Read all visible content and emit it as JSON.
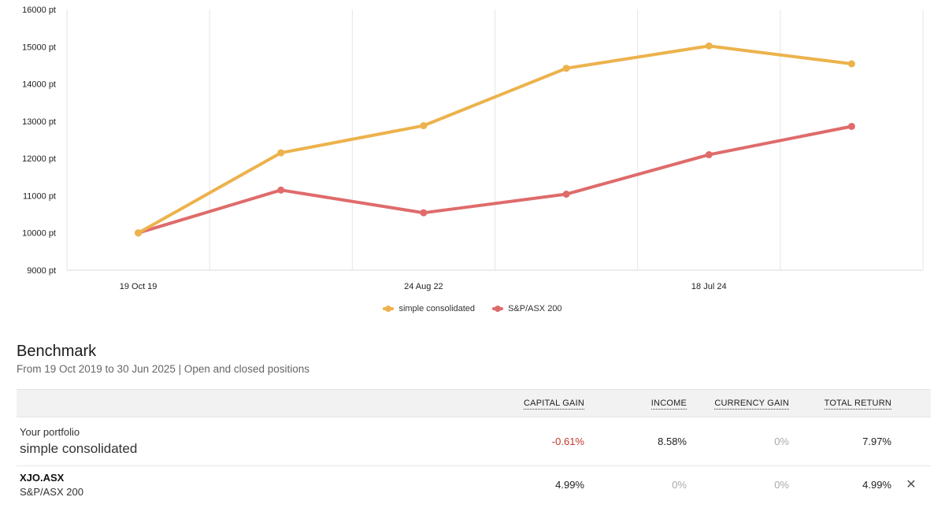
{
  "chart_data": {
    "type": "line",
    "x": [
      "19 Oct 19",
      "",
      "24 Aug 22",
      "",
      "18 Jul 24",
      ""
    ],
    "x_tick_labels": [
      "19 Oct 19",
      "24 Aug 22",
      "18 Jul 24"
    ],
    "ylim": [
      9000,
      16000
    ],
    "y_ticks": [
      9000,
      10000,
      11000,
      12000,
      13000,
      14000,
      15000,
      16000
    ],
    "y_unit": "pt",
    "series": [
      {
        "name": "simple consolidated",
        "color": "#EDB24C",
        "values": [
          10000,
          12150,
          12880,
          14420,
          15020,
          14540
        ]
      },
      {
        "name": "S&P/ASX 200",
        "color": "#DF6B6B",
        "values": [
          10000,
          11150,
          10540,
          11040,
          12100,
          12860
        ]
      }
    ],
    "legend_position": "bottom"
  },
  "benchmark": {
    "title": "Benchmark",
    "subtitle": "From 19 Oct 2019 to 30 Jun 2025 | Open and closed positions",
    "headers": {
      "capital_gain": "CAPITAL GAIN",
      "income": "INCOME",
      "currency_gain": "CURRENCY GAIN",
      "total_return": "TOTAL RETURN"
    },
    "portfolio": {
      "label": "Your portfolio",
      "name": "simple consolidated",
      "capital_gain": "-0.61%",
      "income": "8.58%",
      "currency_gain": "0%",
      "total_return": "7.97%"
    },
    "index": {
      "code": "XJO.ASX",
      "name": "S&P/ASX 200",
      "capital_gain": "4.99%",
      "income": "0%",
      "currency_gain": "0%",
      "total_return": "4.99%",
      "remove_icon": "close-icon",
      "remove_glyph": "✕"
    }
  }
}
